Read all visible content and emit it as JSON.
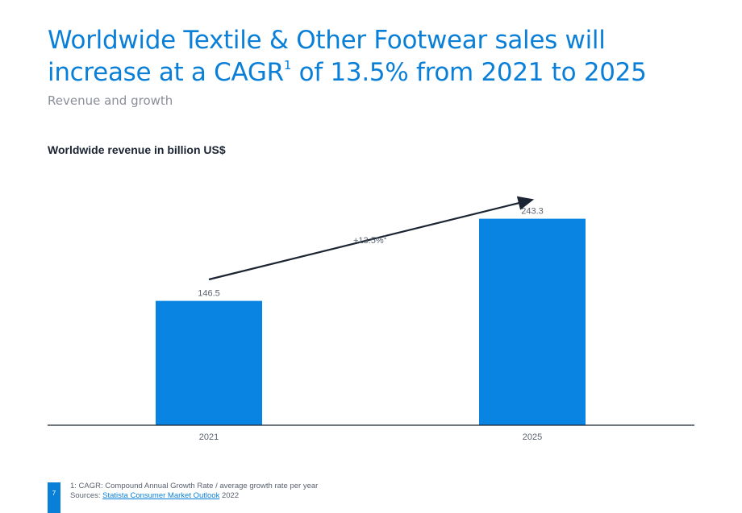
{
  "header": {
    "title_main": "Worldwide Textile & Other Footwear sales will increase at a CAGR",
    "title_sup": "1",
    "title_tail": " of 13.5% from 2021 to 2025",
    "subtitle": "Revenue and growth"
  },
  "chart_caption": "Worldwide revenue in billion US$",
  "chart_data": {
    "type": "bar",
    "categories": [
      "2021",
      "2025"
    ],
    "values": [
      146.5,
      243.3
    ],
    "value_labels": [
      "146.5",
      "243.3"
    ],
    "ylim": [
      0,
      260
    ],
    "annotation": {
      "text": "+13.5%",
      "sup": "1"
    },
    "color": "#0a84e3"
  },
  "footer": {
    "note": "1: CAGR: Compound Annual Growth Rate / average growth rate per year",
    "sources_prefix": "Sources: ",
    "sources_link": "Statista Consumer Market Outlook",
    "sources_suffix": " 2022",
    "page_number": "7"
  }
}
